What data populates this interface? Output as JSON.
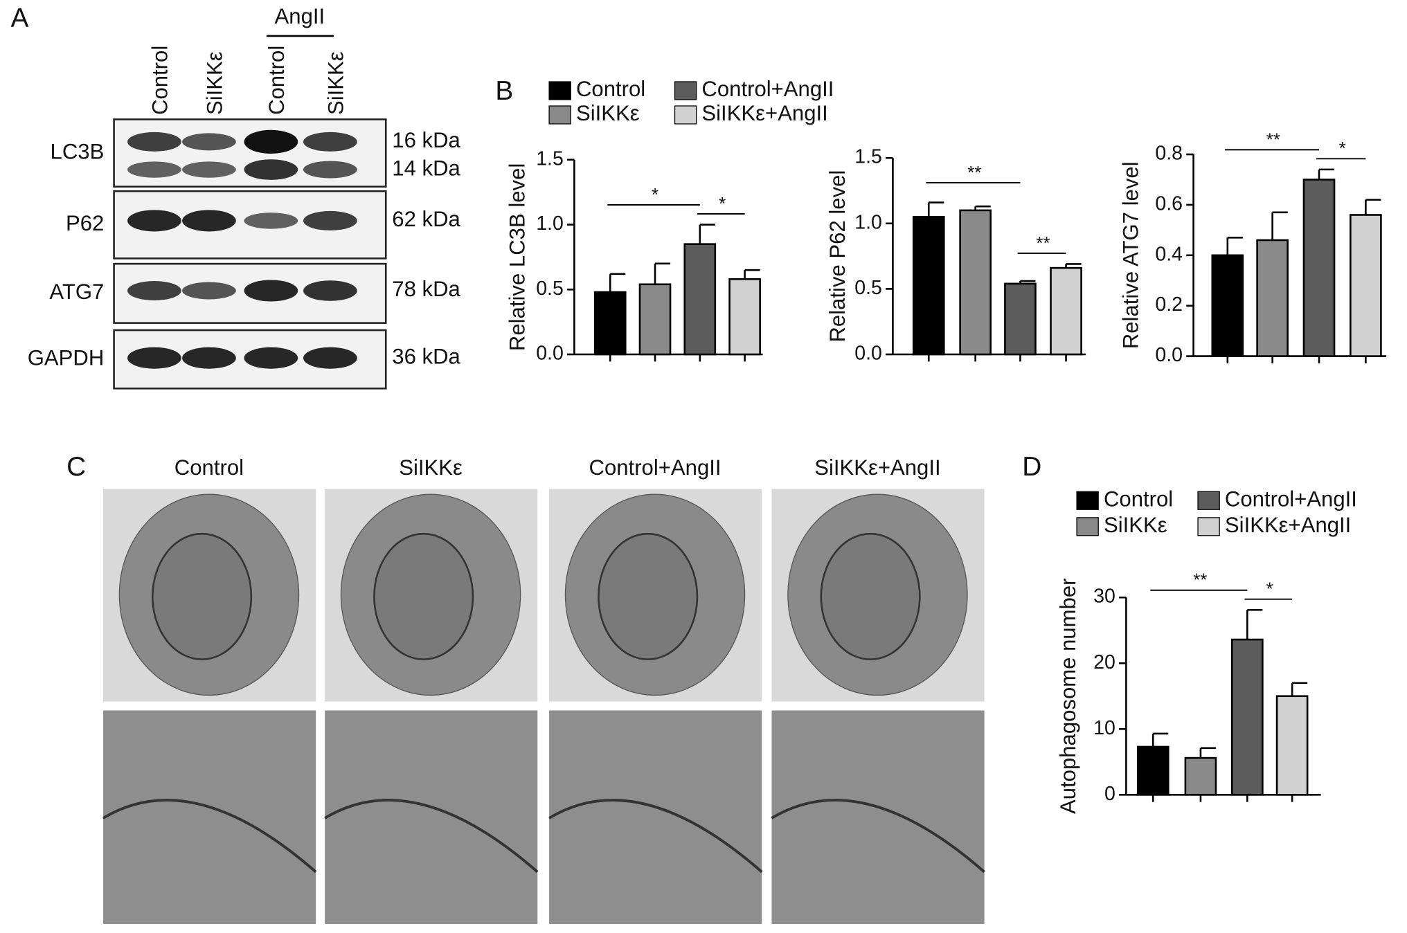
{
  "panels": [
    "A",
    "B",
    "C",
    "D"
  ],
  "blot": {
    "lanes": [
      "Control",
      "SiIKKε",
      "Control",
      "SiIKKε"
    ],
    "group_label": "AngII",
    "rows": [
      {
        "label": "LC3B",
        "sizes": [
          "16 kDa",
          "14 kDa"
        ]
      },
      {
        "label": "P62",
        "sizes": [
          "62 kDa"
        ]
      },
      {
        "label": "ATG7",
        "sizes": [
          "78 kDa"
        ]
      },
      {
        "label": "GAPDH",
        "sizes": [
          "36 kDa"
        ]
      }
    ]
  },
  "micrographs": {
    "columns": [
      "Control",
      "SiIKKε",
      "Control+AngII",
      "SiIKKε+AngII"
    ]
  },
  "chart_data": [
    {
      "type": "bar",
      "ylabel": "Relative LC3B level",
      "ylim": [
        0,
        1.5
      ],
      "yticks": [
        {
          "value": 0,
          "label": "0.0"
        },
        0.5,
        {
          "value": 1,
          "label": "1.0"
        },
        1.5
      ],
      "series": [
        {
          "name": "Control",
          "color": "#000000",
          "values": [
            0.48
          ],
          "errors": [
            0.14
          ]
        },
        {
          "name": "SiIKKε",
          "color": "#8a8a8a",
          "values": [
            0.54
          ],
          "errors": [
            0.16
          ]
        },
        {
          "name": "Control+AngII",
          "color": "#5c5c5c",
          "values": [
            0.85
          ],
          "errors": [
            0.15
          ]
        },
        {
          "name": "SiIKKε+AngII",
          "color": "#d2d2d2",
          "values": [
            0.58
          ],
          "errors": [
            0.07
          ]
        }
      ],
      "annotations": [
        {
          "text": "*",
          "between": [
            0,
            2
          ]
        },
        {
          "text": "*",
          "between": [
            2,
            3
          ]
        }
      ]
    },
    {
      "type": "bar",
      "ylabel": "Relative P62 level",
      "ylim": [
        0,
        1.5
      ],
      "yticks": [
        {
          "value": 0,
          "label": "0.0"
        },
        0.5,
        {
          "value": 1,
          "label": "1.0"
        },
        1.5
      ],
      "series": [
        {
          "color": "#000000",
          "values": [
            1.05
          ],
          "errors": [
            0.11
          ]
        },
        {
          "color": "#8a8a8a",
          "values": [
            1.1
          ],
          "errors": [
            0.03
          ]
        },
        {
          "color": "#5c5c5c",
          "values": [
            0.54
          ],
          "errors": [
            0.02
          ]
        },
        {
          "color": "#d2d2d2",
          "values": [
            0.66
          ],
          "errors": [
            0.03
          ]
        }
      ],
      "annotations": [
        {
          "text": "**",
          "between": [
            0,
            2
          ]
        },
        {
          "text": "**",
          "between": [
            2,
            3
          ]
        }
      ]
    },
    {
      "type": "bar",
      "ylabel": "Relative ATG7 level",
      "ylim": [
        0,
        0.8
      ],
      "yticks": [
        {
          "value": 0,
          "label": "0.0"
        },
        0.2,
        0.4,
        0.6,
        0.8
      ],
      "series": [
        {
          "color": "#000000",
          "values": [
            0.4
          ],
          "errors": [
            0.07
          ]
        },
        {
          "color": "#8a8a8a",
          "values": [
            0.46
          ],
          "errors": [
            0.11
          ]
        },
        {
          "color": "#5c5c5c",
          "values": [
            0.7
          ],
          "errors": [
            0.04
          ]
        },
        {
          "color": "#d2d2d2",
          "values": [
            0.56
          ],
          "errors": [
            0.06
          ]
        }
      ],
      "annotations": [
        {
          "text": "**",
          "between": [
            0,
            2
          ]
        },
        {
          "text": "*",
          "between": [
            2,
            3
          ]
        }
      ]
    },
    {
      "type": "bar",
      "ylabel": "Autophagosome number",
      "ylim": [
        0,
        30
      ],
      "yticks": [
        0,
        10,
        20,
        30
      ],
      "series": [
        {
          "name": "Control",
          "color": "#000000",
          "values": [
            7.3
          ],
          "errors": [
            2.0
          ]
        },
        {
          "name": "SiIKKε",
          "color": "#8a8a8a",
          "values": [
            5.6
          ],
          "errors": [
            1.5
          ]
        },
        {
          "name": "Control+AngII",
          "color": "#5c5c5c",
          "values": [
            23.6
          ],
          "errors": [
            4.5
          ]
        },
        {
          "name": "SiIKKε+AngII",
          "color": "#d2d2d2",
          "values": [
            15.0
          ],
          "errors": [
            2.0
          ]
        }
      ],
      "annotations": [
        {
          "text": "**",
          "between": [
            0,
            2
          ]
        },
        {
          "text": "*",
          "between": [
            2,
            3
          ]
        }
      ]
    }
  ]
}
